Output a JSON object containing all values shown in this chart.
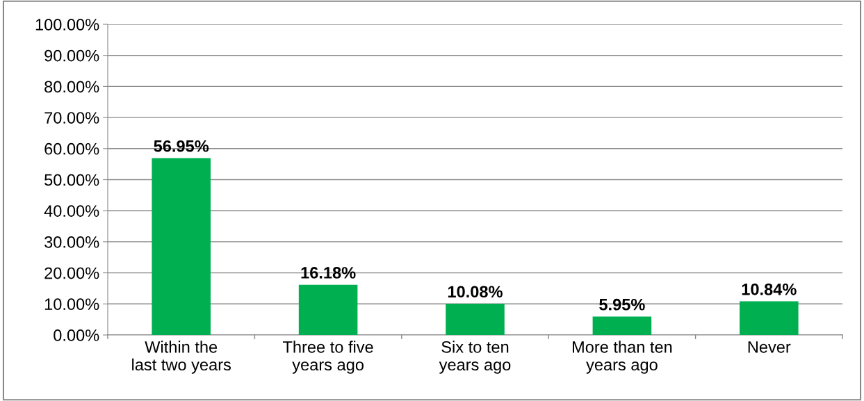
{
  "chart_data": {
    "type": "bar",
    "categories": [
      "Within the last two years",
      "Three to five years ago",
      "Six to ten years ago",
      "More than ten years ago",
      "Never"
    ],
    "values": [
      56.95,
      16.18,
      10.08,
      5.95,
      10.84
    ],
    "value_labels": [
      "56.95%",
      "16.18%",
      "10.08%",
      "5.95%",
      "10.84%"
    ],
    "color": "#00b050",
    "ylim": [
      0,
      100
    ],
    "yticks": [
      {
        "value": 0,
        "label": "0.00%"
      },
      {
        "value": 10,
        "label": "10.00%"
      },
      {
        "value": 20,
        "label": "20.00%"
      },
      {
        "value": 30,
        "label": "30.00%"
      },
      {
        "value": 40,
        "label": "40.00%"
      },
      {
        "value": 50,
        "label": "50.00%"
      },
      {
        "value": 60,
        "label": "60.00%"
      },
      {
        "value": 70,
        "label": "70.00%"
      },
      {
        "value": 80,
        "label": "80.00%"
      },
      {
        "value": 90,
        "label": "90.00%"
      },
      {
        "value": 100,
        "label": "100.00%"
      }
    ],
    "grid": "y",
    "legend": false
  }
}
